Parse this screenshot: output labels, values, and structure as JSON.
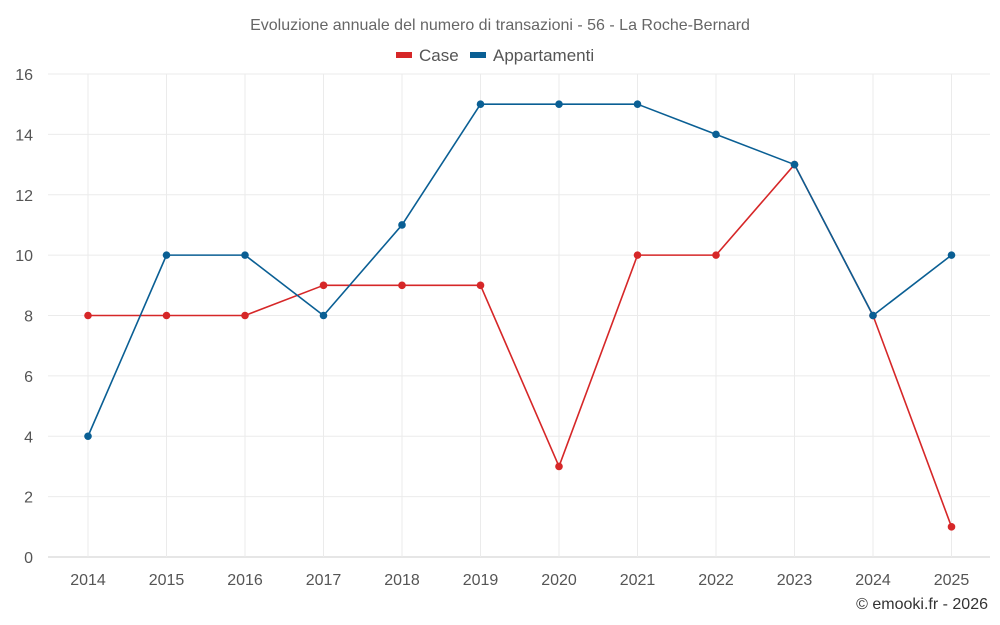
{
  "chart_data": {
    "type": "line",
    "title": "Evoluzione annuale del numero di transazioni - 56 - La Roche-Bernard",
    "categories": [
      "2014",
      "2015",
      "2016",
      "2017",
      "2018",
      "2019",
      "2020",
      "2021",
      "2022",
      "2023",
      "2024",
      "2025"
    ],
    "series": [
      {
        "name": "Case",
        "color": "#d62728",
        "values": [
          8,
          8,
          8,
          9,
          9,
          9,
          3,
          10,
          10,
          13,
          8,
          1
        ]
      },
      {
        "name": "Appartamenti",
        "color": "#0a5f94",
        "values": [
          4,
          10,
          10,
          8,
          11,
          15,
          15,
          15,
          14,
          13,
          8,
          10
        ]
      }
    ],
    "xlabel": "",
    "ylabel": "",
    "ylim": [
      0,
      16
    ],
    "yticks": [
      0,
      2,
      4,
      6,
      8,
      10,
      12,
      14,
      16
    ],
    "grid": true,
    "legend": "top-center"
  },
  "credit": "© emooki.fr - 2026"
}
